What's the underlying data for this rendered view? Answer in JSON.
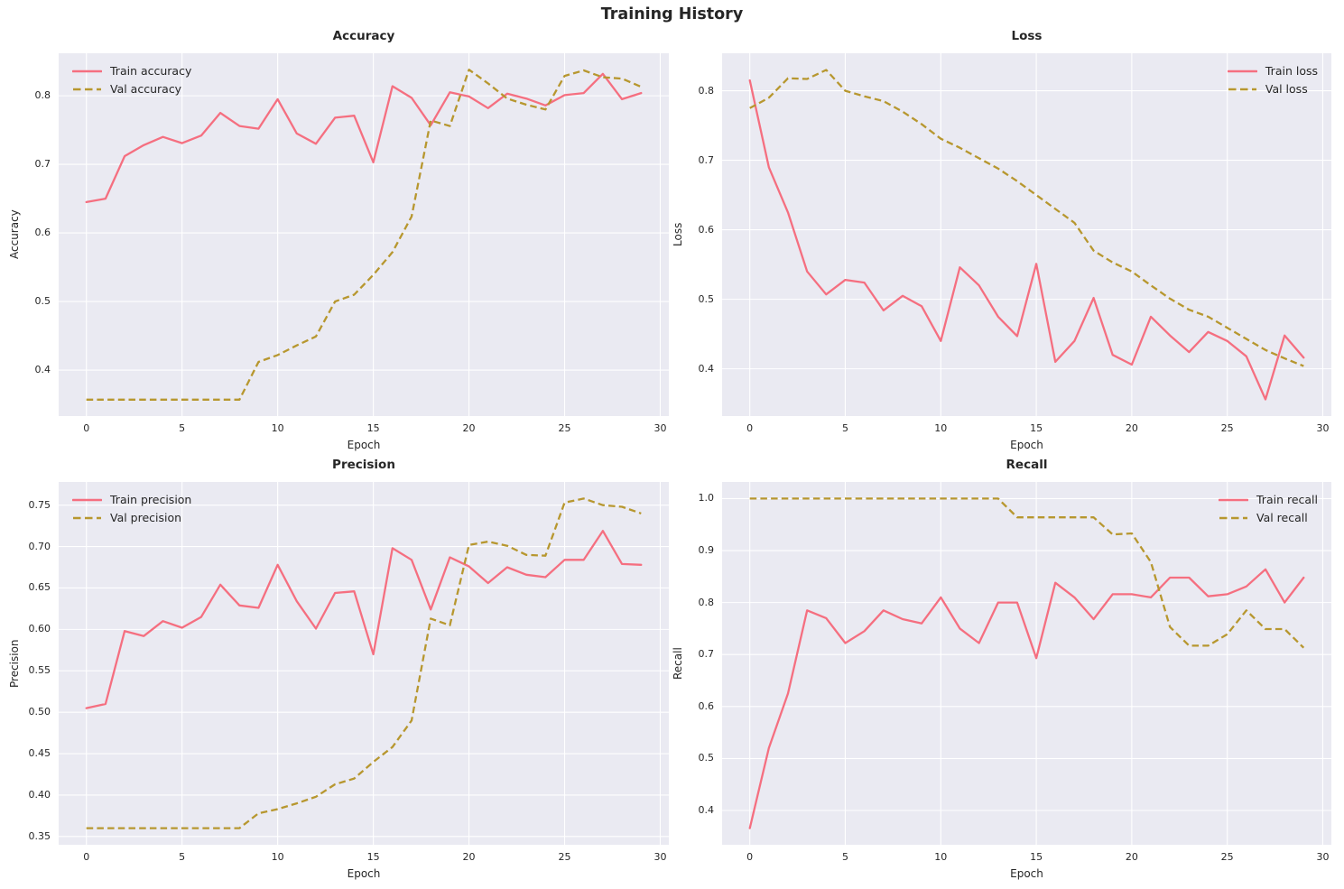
{
  "figure_title": "Training History",
  "colors": {
    "train": "#f56f80",
    "val": "#b7972f",
    "axes_background": "#eaeaf2",
    "grid": "#ffffff",
    "text": "#262626"
  },
  "chart_data": [
    {
      "type": "line",
      "title": "Accuracy",
      "xlabel": "Epoch",
      "ylabel": "Accuracy",
      "grid": true,
      "legend_position": "upper-left",
      "xlim": [
        -1.45,
        30.45
      ],
      "ylim": [
        0.333,
        0.862
      ],
      "xticks": [
        0,
        5,
        10,
        15,
        20,
        25,
        30
      ],
      "xtick_labels": [
        "0",
        "5",
        "10",
        "15",
        "20",
        "25",
        "30"
      ],
      "yticks": [
        0.4,
        0.5,
        0.6,
        0.7,
        0.8
      ],
      "ytick_labels": [
        "0.4",
        "0.5",
        "0.6",
        "0.7",
        "0.8"
      ],
      "x": [
        0,
        1,
        2,
        3,
        4,
        5,
        6,
        7,
        8,
        9,
        10,
        11,
        12,
        13,
        14,
        15,
        16,
        17,
        18,
        19,
        20,
        21,
        22,
        23,
        24,
        25,
        26,
        27,
        28,
        29
      ],
      "series": [
        {
          "name": "Train accuracy",
          "line_style": "solid",
          "color": "#f56f80",
          "values": [
            0.645,
            0.65,
            0.712,
            0.728,
            0.74,
            0.731,
            0.742,
            0.775,
            0.756,
            0.752,
            0.795,
            0.745,
            0.73,
            0.768,
            0.771,
            0.703,
            0.814,
            0.797,
            0.757,
            0.805,
            0.799,
            0.782,
            0.803,
            0.796,
            0.786,
            0.801,
            0.804,
            0.832,
            0.795,
            0.804
          ]
        },
        {
          "name": "Val accuracy",
          "line_style": "dashed",
          "color": "#b7972f",
          "values": [
            0.357,
            0.357,
            0.357,
            0.357,
            0.357,
            0.357,
            0.357,
            0.357,
            0.357,
            0.412,
            0.422,
            0.436,
            0.449,
            0.5,
            0.51,
            0.539,
            0.572,
            0.624,
            0.764,
            0.756,
            0.838,
            0.818,
            0.796,
            0.787,
            0.78,
            0.829,
            0.837,
            0.827,
            0.825,
            0.813
          ]
        }
      ]
    },
    {
      "type": "line",
      "title": "Loss",
      "xlabel": "Epoch",
      "ylabel": "Loss",
      "grid": true,
      "legend_position": "upper-right",
      "xlim": [
        -1.45,
        30.45
      ],
      "ylim": [
        0.332,
        0.854
      ],
      "xticks": [
        0,
        5,
        10,
        15,
        20,
        25,
        30
      ],
      "xtick_labels": [
        "0",
        "5",
        "10",
        "15",
        "20",
        "25",
        "30"
      ],
      "yticks": [
        0.4,
        0.5,
        0.6,
        0.7,
        0.8
      ],
      "ytick_labels": [
        "0.4",
        "0.5",
        "0.6",
        "0.7",
        "0.8"
      ],
      "x": [
        0,
        1,
        2,
        3,
        4,
        5,
        6,
        7,
        8,
        9,
        10,
        11,
        12,
        13,
        14,
        15,
        16,
        17,
        18,
        19,
        20,
        21,
        22,
        23,
        24,
        25,
        26,
        27,
        28,
        29
      ],
      "series": [
        {
          "name": "Train loss",
          "line_style": "solid",
          "color": "#f56f80",
          "values": [
            0.815,
            0.69,
            0.625,
            0.54,
            0.507,
            0.528,
            0.524,
            0.484,
            0.505,
            0.49,
            0.44,
            0.546,
            0.52,
            0.475,
            0.447,
            0.551,
            0.41,
            0.44,
            0.502,
            0.42,
            0.406,
            0.475,
            0.448,
            0.424,
            0.453,
            0.44,
            0.418,
            0.356,
            0.448,
            0.416
          ]
        },
        {
          "name": "Val loss",
          "line_style": "dashed",
          "color": "#b7972f",
          "values": [
            0.775,
            0.79,
            0.818,
            0.817,
            0.83,
            0.8,
            0.792,
            0.785,
            0.77,
            0.752,
            0.731,
            0.718,
            0.703,
            0.688,
            0.67,
            0.65,
            0.63,
            0.61,
            0.57,
            0.553,
            0.54,
            0.52,
            0.501,
            0.485,
            0.475,
            0.459,
            0.443,
            0.427,
            0.415,
            0.404
          ]
        }
      ]
    },
    {
      "type": "line",
      "title": "Precision",
      "xlabel": "Epoch",
      "ylabel": "Precision",
      "grid": true,
      "legend_position": "upper-left",
      "xlim": [
        -1.45,
        30.45
      ],
      "ylim": [
        0.34,
        0.778
      ],
      "xticks": [
        0,
        5,
        10,
        15,
        20,
        25,
        30
      ],
      "xtick_labels": [
        "0",
        "5",
        "10",
        "15",
        "20",
        "25",
        "30"
      ],
      "yticks": [
        0.35,
        0.4,
        0.45,
        0.5,
        0.55,
        0.6,
        0.65,
        0.7,
        0.75
      ],
      "ytick_labels": [
        "0.35",
        "0.40",
        "0.45",
        "0.50",
        "0.55",
        "0.60",
        "0.65",
        "0.70",
        "0.75"
      ],
      "x": [
        0,
        1,
        2,
        3,
        4,
        5,
        6,
        7,
        8,
        9,
        10,
        11,
        12,
        13,
        14,
        15,
        16,
        17,
        18,
        19,
        20,
        21,
        22,
        23,
        24,
        25,
        26,
        27,
        28,
        29
      ],
      "series": [
        {
          "name": "Train precision",
          "line_style": "solid",
          "color": "#f56f80",
          "values": [
            0.505,
            0.51,
            0.598,
            0.592,
            0.61,
            0.602,
            0.615,
            0.654,
            0.629,
            0.626,
            0.678,
            0.634,
            0.601,
            0.644,
            0.646,
            0.57,
            0.698,
            0.684,
            0.624,
            0.687,
            0.676,
            0.656,
            0.675,
            0.666,
            0.663,
            0.684,
            0.684,
            0.719,
            0.679,
            0.678
          ]
        },
        {
          "name": "Val precision",
          "line_style": "dashed",
          "color": "#b7972f",
          "values": [
            0.36,
            0.36,
            0.36,
            0.36,
            0.36,
            0.36,
            0.36,
            0.36,
            0.36,
            0.378,
            0.383,
            0.39,
            0.398,
            0.413,
            0.42,
            0.44,
            0.458,
            0.49,
            0.613,
            0.605,
            0.702,
            0.706,
            0.701,
            0.69,
            0.689,
            0.753,
            0.758,
            0.75,
            0.748,
            0.74
          ]
        }
      ]
    },
    {
      "type": "line",
      "title": "Recall",
      "xlabel": "Epoch",
      "ylabel": "Recall",
      "grid": true,
      "legend_position": "upper-right",
      "xlim": [
        -1.45,
        30.45
      ],
      "ylim": [
        0.334,
        1.032
      ],
      "xticks": [
        0,
        5,
        10,
        15,
        20,
        25,
        30
      ],
      "xtick_labels": [
        "0",
        "5",
        "10",
        "15",
        "20",
        "25",
        "30"
      ],
      "yticks": [
        0.4,
        0.5,
        0.6,
        0.7,
        0.8,
        0.9,
        1.0
      ],
      "ytick_labels": [
        "0.4",
        "0.5",
        "0.6",
        "0.7",
        "0.8",
        "0.9",
        "1.0"
      ],
      "x": [
        0,
        1,
        2,
        3,
        4,
        5,
        6,
        7,
        8,
        9,
        10,
        11,
        12,
        13,
        14,
        15,
        16,
        17,
        18,
        19,
        20,
        21,
        22,
        23,
        24,
        25,
        26,
        27,
        28,
        29
      ],
      "series": [
        {
          "name": "Train recall",
          "line_style": "solid",
          "color": "#f56f80",
          "values": [
            0.366,
            0.52,
            0.625,
            0.785,
            0.77,
            0.722,
            0.745,
            0.785,
            0.768,
            0.76,
            0.81,
            0.75,
            0.722,
            0.8,
            0.8,
            0.693,
            0.838,
            0.81,
            0.768,
            0.816,
            0.816,
            0.81,
            0.848,
            0.848,
            0.812,
            0.816,
            0.831,
            0.864,
            0.8,
            0.848
          ]
        },
        {
          "name": "Val recall",
          "line_style": "dashed",
          "color": "#b7972f",
          "values": [
            1.0,
            1.0,
            1.0,
            1.0,
            1.0,
            1.0,
            1.0,
            1.0,
            1.0,
            1.0,
            1.0,
            1.0,
            1.0,
            1.0,
            0.964,
            0.964,
            0.964,
            0.964,
            0.964,
            0.931,
            0.933,
            0.878,
            0.753,
            0.717,
            0.717,
            0.739,
            0.785,
            0.749,
            0.749,
            0.713
          ]
        }
      ]
    }
  ]
}
